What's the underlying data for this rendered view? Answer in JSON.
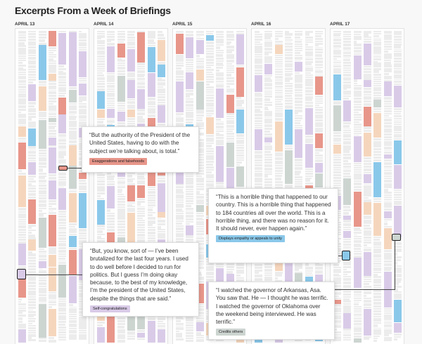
{
  "title": "Excerpts From a Week of Briefings",
  "days": [
    "APRIL 13",
    "APRIL 14",
    "APRIL 15",
    "APRIL 16",
    "APRIL 17"
  ],
  "category_colors": {
    "neutral": "#ececec",
    "self_congratulations": "#d9cbe8",
    "exaggerations": "#e8968a",
    "empathy": "#8ac8ea",
    "credits_others": "#cdd5d1",
    "other": "#f5d6bd"
  },
  "callouts": [
    {
      "quote": "“But the authority of the President of the United States, having to do with the subject we’re talking about, is total.”",
      "tag": "Exaggerations and falsehoods",
      "tag_color": "#e8968a"
    },
    {
      "quote": "“This is a horrible thing that happened to our country. This is a horrible thing that happened to 184 countries all over the world. This is a horrible thing, and there was no reason for it. It should never, ever happen again.”",
      "tag": "Displays empathy or appeals to unity",
      "tag_color": "#8ac8ea"
    },
    {
      "quote": "“But, you know, sort of — I’ve been brutalized for the last four years. I used to do well before I decided to run for politics. But I guess I’m doing okay because, to the best of my knowledge, I’m the president of the United States, despite the things that are said.”",
      "tag": "Self-congratulations",
      "tag_color": "#d9cbe8"
    },
    {
      "quote": "“I watched the governor of Arkansas, Asa. You saw that. He — I thought he was terrific. I watched the governor of Oklahoma over the weekend being interviewed. He was terrific.”",
      "tag": "Credits others",
      "tag_color": "#cdd5d1"
    }
  ]
}
